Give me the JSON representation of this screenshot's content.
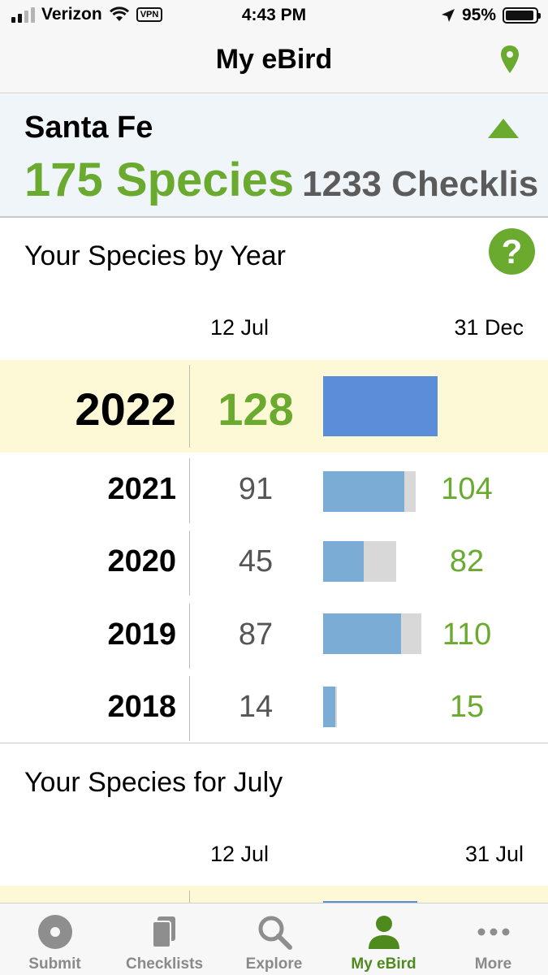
{
  "status_bar": {
    "carrier": "Verizon",
    "vpn": "VPN",
    "time": "4:43 PM",
    "battery": "95%",
    "battery_level": 0.95
  },
  "nav": {
    "title": "My eBird",
    "location_icon": "map-pin-icon"
  },
  "location": {
    "name": "Santa Fe",
    "species": "175 Species",
    "checklists": "1233 Checklis"
  },
  "by_year": {
    "title": "Your Species by Year",
    "help_label": "?",
    "col_date": "12 Jul",
    "col_end": "31 Dec",
    "rows": [
      {
        "year": "2022",
        "count": "128",
        "total": "",
        "count_value": 128,
        "total_value": 128,
        "current": true
      },
      {
        "year": "2021",
        "count": "91",
        "total": "104",
        "count_value": 91,
        "total_value": 104
      },
      {
        "year": "2020",
        "count": "45",
        "total": "82",
        "count_value": 45,
        "total_value": 82
      },
      {
        "year": "2019",
        "count": "87",
        "total": "110",
        "count_value": 87,
        "total_value": 110
      },
      {
        "year": "2018",
        "count": "14",
        "total": "15",
        "count_value": 14,
        "total_value": 15
      }
    ]
  },
  "by_month": {
    "title": "Your Species for July",
    "col_date": "12 Jul",
    "col_end": "31 Jul"
  },
  "tabs": [
    {
      "label": "Submit",
      "icon": "submit-icon"
    },
    {
      "label": "Checklists",
      "icon": "checklists-icon"
    },
    {
      "label": "Explore",
      "icon": "search-icon"
    },
    {
      "label": "My eBird",
      "icon": "person-icon",
      "active": true
    },
    {
      "label": "More",
      "icon": "more-dots-icon"
    }
  ],
  "colors": {
    "green": "#6aaa2f",
    "bar_current": "#5b8ed9",
    "bar_past": "#7aacd6",
    "bar_total": "#d8d8d8",
    "highlight": "#fdf9d6"
  }
}
